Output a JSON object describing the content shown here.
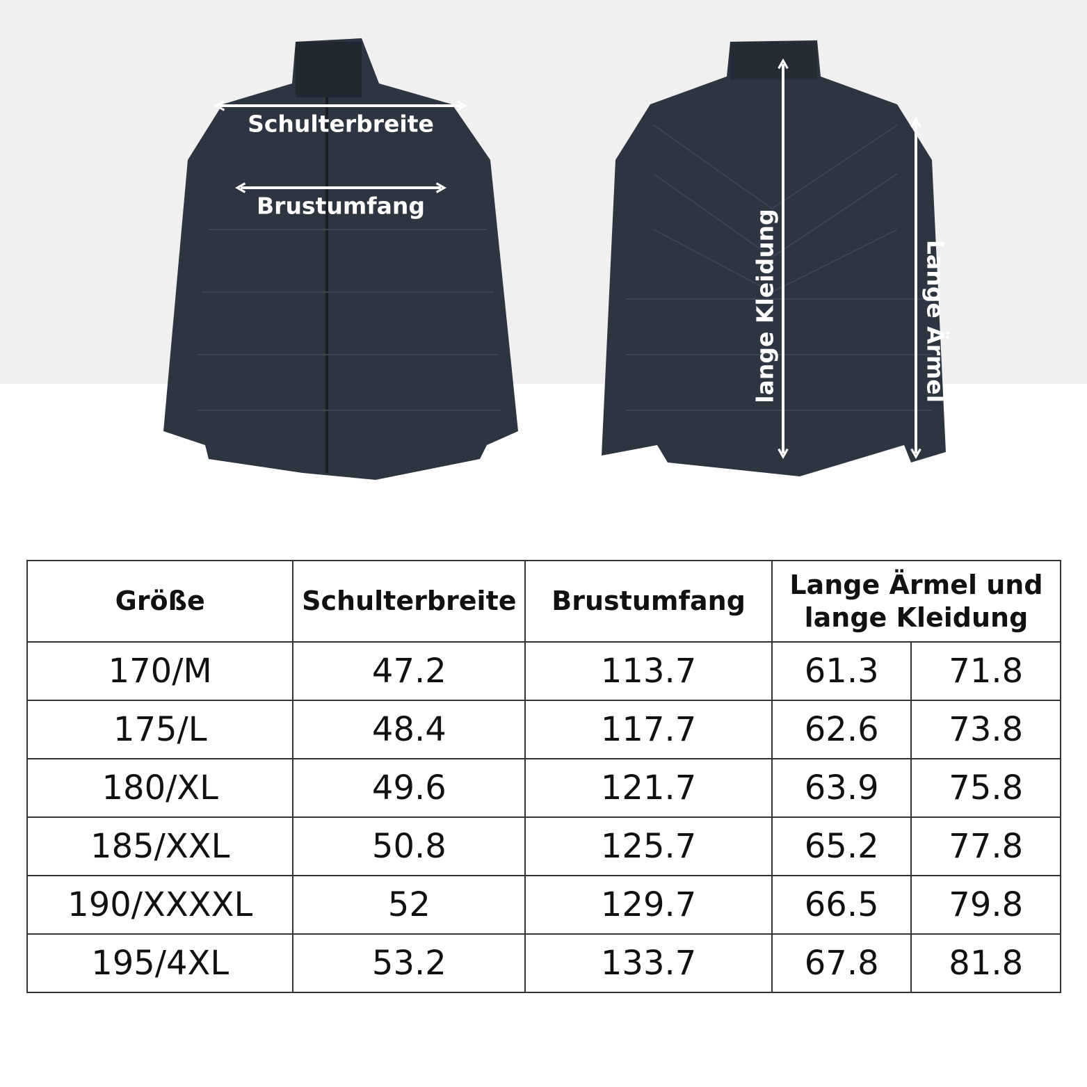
{
  "labels": {
    "shoulder": "Schulterbreite",
    "chest": "Brustumfang",
    "length": "lange Kleidung",
    "sleeve": "Lange Ärmel"
  },
  "colors": {
    "jacket": "#2d3541",
    "background_top": "#f0f0f0",
    "border": "#333333"
  },
  "table": {
    "headers": [
      "Größe",
      "Schulterbreite",
      "Brustumfang",
      "Lange Ärmel und lange Kleidung"
    ],
    "rows": [
      [
        "170/M",
        "47.2",
        "113.7",
        "61.3",
        "71.8"
      ],
      [
        "175/L",
        "48.4",
        "117.7",
        "62.6",
        "73.8"
      ],
      [
        "180/XL",
        "49.6",
        "121.7",
        "63.9",
        "75.8"
      ],
      [
        "185/XXL",
        "50.8",
        "125.7",
        "65.2",
        "77.8"
      ],
      [
        "190/XXXXL",
        "52",
        "129.7",
        "66.5",
        "79.8"
      ],
      [
        "195/4XL",
        "53.2",
        "133.7",
        "67.8",
        "81.8"
      ]
    ]
  }
}
